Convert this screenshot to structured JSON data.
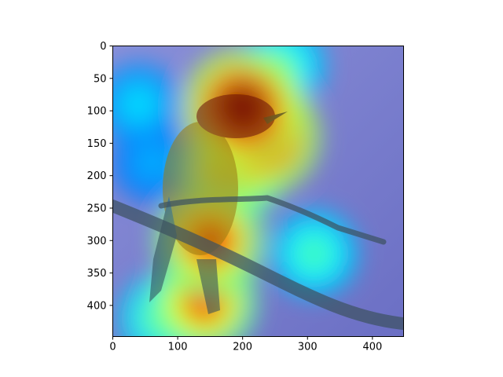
{
  "chart_data": {
    "type": "heatmap",
    "title": "",
    "xlabel": "",
    "ylabel": "",
    "xlim": [
      0,
      448
    ],
    "ylim": [
      448,
      0
    ],
    "y_axis_inverted": true,
    "x_ticks": [
      {
        "value": 0,
        "label": "0"
      },
      {
        "value": 100,
        "label": "100"
      },
      {
        "value": 200,
        "label": "200"
      },
      {
        "value": 300,
        "label": "300"
      },
      {
        "value": 400,
        "label": "400"
      }
    ],
    "y_ticks": [
      {
        "value": 0,
        "label": "0"
      },
      {
        "value": 50,
        "label": "50"
      },
      {
        "value": 100,
        "label": "100"
      },
      {
        "value": 150,
        "label": "150"
      },
      {
        "value": 200,
        "label": "200"
      },
      {
        "value": 250,
        "label": "250"
      },
      {
        "value": 300,
        "label": "300"
      },
      {
        "value": 350,
        "label": "350"
      },
      {
        "value": 400,
        "label": "400"
      }
    ],
    "colormap": "jet",
    "overlay": "attention heatmap over bird photograph",
    "grid": false,
    "legend": "none",
    "hotspots": [
      {
        "x": 200,
        "y": 95,
        "intensity": 1.0
      },
      {
        "x": 230,
        "y": 140,
        "intensity": 0.95
      },
      {
        "x": 185,
        "y": 190,
        "intensity": 0.75
      },
      {
        "x": 150,
        "y": 300,
        "intensity": 0.85
      },
      {
        "x": 140,
        "y": 395,
        "intensity": 0.8
      },
      {
        "x": 80,
        "y": 420,
        "intensity": 0.5
      },
      {
        "x": 260,
        "y": 30,
        "intensity": 0.45
      },
      {
        "x": 310,
        "y": 320,
        "intensity": 0.45
      },
      {
        "x": 40,
        "y": 90,
        "intensity": 0.35
      },
      {
        "x": 60,
        "y": 180,
        "intensity": 0.3
      }
    ]
  }
}
